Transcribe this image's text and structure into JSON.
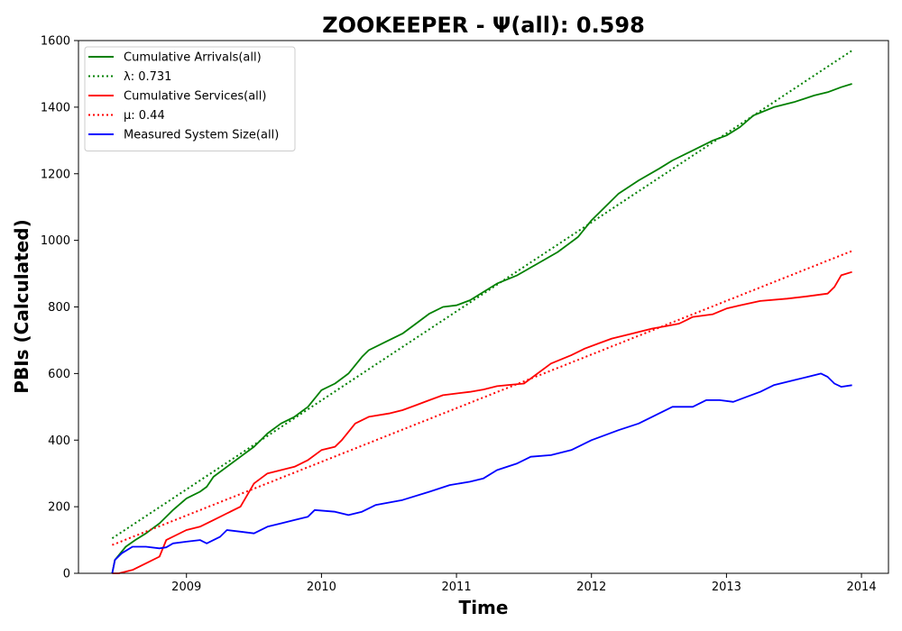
{
  "chart_data": {
    "type": "line",
    "title": "ZOOKEEPER -  Ψ(all): 0.598",
    "xlabel": "Time",
    "ylabel": "PBIs (Calculated)",
    "xlim": [
      2008.2,
      2014.2
    ],
    "ylim": [
      0,
      1600
    ],
    "xticks": [
      2009,
      2010,
      2011,
      2012,
      2013,
      2014
    ],
    "yticks": [
      0,
      200,
      400,
      600,
      800,
      1000,
      1200,
      1400,
      1600
    ],
    "grid": false,
    "legend_position": "top-left",
    "series": [
      {
        "name": "Cumulative Arrivals(all)",
        "color": "#008000",
        "style": "solid",
        "points": [
          [
            2008.45,
            0
          ],
          [
            2008.47,
            40
          ],
          [
            2008.55,
            80
          ],
          [
            2008.62,
            100
          ],
          [
            2008.7,
            120
          ],
          [
            2008.8,
            150
          ],
          [
            2008.9,
            190
          ],
          [
            2009.0,
            225
          ],
          [
            2009.1,
            245
          ],
          [
            2009.15,
            260
          ],
          [
            2009.2,
            290
          ],
          [
            2009.3,
            320
          ],
          [
            2009.4,
            350
          ],
          [
            2009.5,
            380
          ],
          [
            2009.6,
            420
          ],
          [
            2009.7,
            450
          ],
          [
            2009.8,
            470
          ],
          [
            2009.9,
            500
          ],
          [
            2010.0,
            550
          ],
          [
            2010.1,
            570
          ],
          [
            2010.2,
            600
          ],
          [
            2010.3,
            650
          ],
          [
            2010.35,
            670
          ],
          [
            2010.45,
            690
          ],
          [
            2010.6,
            720
          ],
          [
            2010.7,
            750
          ],
          [
            2010.8,
            780
          ],
          [
            2010.9,
            800
          ],
          [
            2011.0,
            805
          ],
          [
            2011.1,
            820
          ],
          [
            2011.2,
            845
          ],
          [
            2011.3,
            870
          ],
          [
            2011.45,
            895
          ],
          [
            2011.6,
            930
          ],
          [
            2011.75,
            965
          ],
          [
            2011.9,
            1010
          ],
          [
            2012.0,
            1060
          ],
          [
            2012.1,
            1100
          ],
          [
            2012.2,
            1140
          ],
          [
            2012.35,
            1180
          ],
          [
            2012.5,
            1215
          ],
          [
            2012.6,
            1240
          ],
          [
            2012.75,
            1270
          ],
          [
            2012.9,
            1300
          ],
          [
            2013.0,
            1315
          ],
          [
            2013.1,
            1340
          ],
          [
            2013.2,
            1375
          ],
          [
            2013.35,
            1400
          ],
          [
            2013.5,
            1415
          ],
          [
            2013.65,
            1435
          ],
          [
            2013.75,
            1445
          ],
          [
            2013.85,
            1460
          ],
          [
            2013.93,
            1470
          ]
        ]
      },
      {
        "name": "λ: 0.731",
        "color": "#008000",
        "style": "dotted",
        "points": [
          [
            2008.45,
            105
          ],
          [
            2013.93,
            1570
          ]
        ]
      },
      {
        "name": "Cumulative Services(all)",
        "color": "#ff0000",
        "style": "solid",
        "points": [
          [
            2008.45,
            0
          ],
          [
            2008.5,
            0
          ],
          [
            2008.6,
            10
          ],
          [
            2008.7,
            30
          ],
          [
            2008.8,
            50
          ],
          [
            2008.85,
            100
          ],
          [
            2009.0,
            130
          ],
          [
            2009.1,
            140
          ],
          [
            2009.2,
            160
          ],
          [
            2009.3,
            180
          ],
          [
            2009.4,
            200
          ],
          [
            2009.5,
            270
          ],
          [
            2009.6,
            300
          ],
          [
            2009.7,
            310
          ],
          [
            2009.8,
            320
          ],
          [
            2009.9,
            340
          ],
          [
            2010.0,
            370
          ],
          [
            2010.1,
            380
          ],
          [
            2010.15,
            400
          ],
          [
            2010.25,
            450
          ],
          [
            2010.35,
            470
          ],
          [
            2010.5,
            480
          ],
          [
            2010.6,
            490
          ],
          [
            2010.7,
            505
          ],
          [
            2010.8,
            520
          ],
          [
            2010.9,
            535
          ],
          [
            2011.0,
            540
          ],
          [
            2011.1,
            545
          ],
          [
            2011.2,
            552
          ],
          [
            2011.3,
            562
          ],
          [
            2011.4,
            566
          ],
          [
            2011.5,
            570
          ],
          [
            2011.6,
            600
          ],
          [
            2011.7,
            630
          ],
          [
            2011.85,
            655
          ],
          [
            2011.95,
            675
          ],
          [
            2012.05,
            690
          ],
          [
            2012.15,
            705
          ],
          [
            2012.3,
            720
          ],
          [
            2012.45,
            735
          ],
          [
            2012.55,
            742
          ],
          [
            2012.65,
            750
          ],
          [
            2012.75,
            770
          ],
          [
            2012.9,
            778
          ],
          [
            2013.0,
            795
          ],
          [
            2013.1,
            805
          ],
          [
            2013.25,
            818
          ],
          [
            2013.45,
            825
          ],
          [
            2013.6,
            832
          ],
          [
            2013.75,
            840
          ],
          [
            2013.8,
            860
          ],
          [
            2013.85,
            895
          ],
          [
            2013.93,
            905
          ]
        ]
      },
      {
        "name": "μ: 0.44",
        "color": "#ff0000",
        "style": "dotted",
        "points": [
          [
            2008.45,
            85
          ],
          [
            2013.93,
            968
          ]
        ]
      },
      {
        "name": "Measured System Size(all)",
        "color": "#0000ff",
        "style": "solid",
        "points": [
          [
            2008.45,
            0
          ],
          [
            2008.47,
            40
          ],
          [
            2008.52,
            60
          ],
          [
            2008.6,
            80
          ],
          [
            2008.7,
            80
          ],
          [
            2008.8,
            75
          ],
          [
            2008.85,
            78
          ],
          [
            2008.9,
            90
          ],
          [
            2009.0,
            95
          ],
          [
            2009.1,
            100
          ],
          [
            2009.15,
            90
          ],
          [
            2009.25,
            110
          ],
          [
            2009.3,
            130
          ],
          [
            2009.4,
            125
          ],
          [
            2009.5,
            120
          ],
          [
            2009.6,
            140
          ],
          [
            2009.7,
            150
          ],
          [
            2009.8,
            160
          ],
          [
            2009.9,
            170
          ],
          [
            2009.95,
            190
          ],
          [
            2010.1,
            185
          ],
          [
            2010.2,
            175
          ],
          [
            2010.3,
            185
          ],
          [
            2010.4,
            205
          ],
          [
            2010.6,
            220
          ],
          [
            2010.8,
            245
          ],
          [
            2010.95,
            265
          ],
          [
            2011.1,
            275
          ],
          [
            2011.2,
            285
          ],
          [
            2011.3,
            310
          ],
          [
            2011.45,
            330
          ],
          [
            2011.55,
            350
          ],
          [
            2011.7,
            355
          ],
          [
            2011.85,
            370
          ],
          [
            2012.0,
            400
          ],
          [
            2012.2,
            430
          ],
          [
            2012.35,
            450
          ],
          [
            2012.5,
            480
          ],
          [
            2012.6,
            500
          ],
          [
            2012.75,
            500
          ],
          [
            2012.85,
            520
          ],
          [
            2012.95,
            520
          ],
          [
            2013.05,
            515
          ],
          [
            2013.15,
            530
          ],
          [
            2013.25,
            545
          ],
          [
            2013.35,
            565
          ],
          [
            2013.5,
            580
          ],
          [
            2013.6,
            590
          ],
          [
            2013.7,
            600
          ],
          [
            2013.75,
            590
          ],
          [
            2013.8,
            570
          ],
          [
            2013.85,
            560
          ],
          [
            2013.93,
            565
          ]
        ]
      }
    ]
  }
}
